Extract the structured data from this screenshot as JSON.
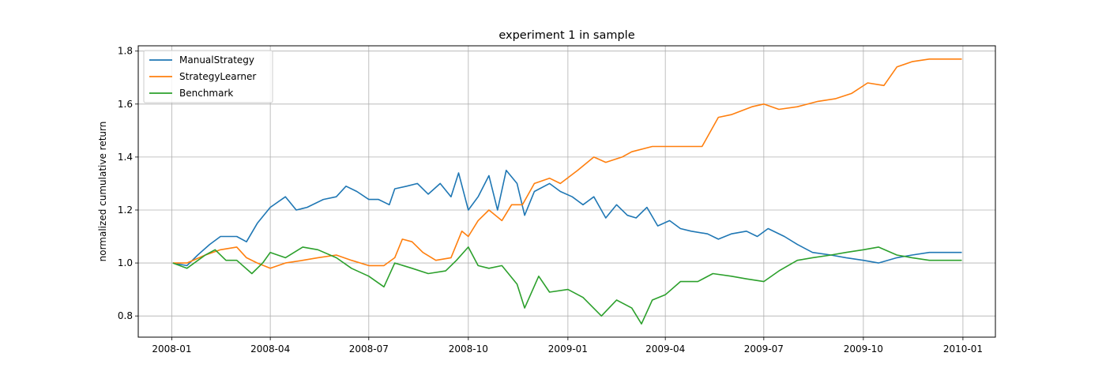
{
  "chart_data": {
    "type": "line",
    "title": "experiment 1 in sample",
    "xlabel": "",
    "ylabel": "normalized cumulative return",
    "x_type": "date",
    "xlim": [
      "2007-12-01",
      "2010-01-31"
    ],
    "ylim": [
      0.72,
      1.82
    ],
    "x_ticks": [
      "2008-01",
      "2008-04",
      "2008-07",
      "2008-10",
      "2009-01",
      "2009-04",
      "2009-07",
      "2009-10",
      "2010-01"
    ],
    "y_ticks": [
      "0.8",
      "1.0",
      "1.2",
      "1.4",
      "1.6",
      "1.8"
    ],
    "grid": true,
    "legend_position": "upper-left",
    "series": [
      {
        "name": "ManualStrategy",
        "color": "#1f77b4",
        "points": [
          [
            "2008-01-02",
            1.0
          ],
          [
            "2008-01-15",
            0.99
          ],
          [
            "2008-01-25",
            1.03
          ],
          [
            "2008-02-05",
            1.07
          ],
          [
            "2008-02-15",
            1.1
          ],
          [
            "2008-03-01",
            1.1
          ],
          [
            "2008-03-10",
            1.08
          ],
          [
            "2008-03-20",
            1.15
          ],
          [
            "2008-04-01",
            1.21
          ],
          [
            "2008-04-15",
            1.25
          ],
          [
            "2008-04-25",
            1.2
          ],
          [
            "2008-05-05",
            1.21
          ],
          [
            "2008-05-20",
            1.24
          ],
          [
            "2008-06-01",
            1.25
          ],
          [
            "2008-06-10",
            1.29
          ],
          [
            "2008-06-20",
            1.27
          ],
          [
            "2008-07-01",
            1.24
          ],
          [
            "2008-07-10",
            1.24
          ],
          [
            "2008-07-20",
            1.22
          ],
          [
            "2008-07-25",
            1.28
          ],
          [
            "2008-08-05",
            1.29
          ],
          [
            "2008-08-15",
            1.3
          ],
          [
            "2008-08-25",
            1.26
          ],
          [
            "2008-09-05",
            1.3
          ],
          [
            "2008-09-15",
            1.25
          ],
          [
            "2008-09-22",
            1.34
          ],
          [
            "2008-10-01",
            1.2
          ],
          [
            "2008-10-10",
            1.25
          ],
          [
            "2008-10-20",
            1.33
          ],
          [
            "2008-10-28",
            1.2
          ],
          [
            "2008-11-05",
            1.35
          ],
          [
            "2008-11-15",
            1.3
          ],
          [
            "2008-11-22",
            1.18
          ],
          [
            "2008-12-01",
            1.27
          ],
          [
            "2008-12-15",
            1.3
          ],
          [
            "2008-12-25",
            1.27
          ],
          [
            "2009-01-05",
            1.25
          ],
          [
            "2009-01-15",
            1.22
          ],
          [
            "2009-01-25",
            1.25
          ],
          [
            "2009-02-05",
            1.17
          ],
          [
            "2009-02-15",
            1.22
          ],
          [
            "2009-02-25",
            1.18
          ],
          [
            "2009-03-05",
            1.17
          ],
          [
            "2009-03-15",
            1.21
          ],
          [
            "2009-03-25",
            1.14
          ],
          [
            "2009-04-05",
            1.16
          ],
          [
            "2009-04-15",
            1.13
          ],
          [
            "2009-04-25",
            1.12
          ],
          [
            "2009-05-10",
            1.11
          ],
          [
            "2009-05-20",
            1.09
          ],
          [
            "2009-06-01",
            1.11
          ],
          [
            "2009-06-15",
            1.12
          ],
          [
            "2009-06-25",
            1.1
          ],
          [
            "2009-07-05",
            1.13
          ],
          [
            "2009-07-20",
            1.1
          ],
          [
            "2009-08-01",
            1.07
          ],
          [
            "2009-08-15",
            1.04
          ],
          [
            "2009-09-01",
            1.03
          ],
          [
            "2009-09-15",
            1.02
          ],
          [
            "2009-10-01",
            1.01
          ],
          [
            "2009-10-15",
            1.0
          ],
          [
            "2009-11-01",
            1.02
          ],
          [
            "2009-11-15",
            1.03
          ],
          [
            "2009-12-01",
            1.04
          ],
          [
            "2009-12-15",
            1.04
          ],
          [
            "2009-12-31",
            1.04
          ]
        ]
      },
      {
        "name": "StrategyLearner",
        "color": "#ff7f0e",
        "points": [
          [
            "2008-01-02",
            1.0
          ],
          [
            "2008-01-15",
            1.0
          ],
          [
            "2008-02-01",
            1.03
          ],
          [
            "2008-02-15",
            1.05
          ],
          [
            "2008-03-01",
            1.06
          ],
          [
            "2008-03-10",
            1.02
          ],
          [
            "2008-03-20",
            1.0
          ],
          [
            "2008-04-01",
            0.98
          ],
          [
            "2008-04-15",
            1.0
          ],
          [
            "2008-05-01",
            1.01
          ],
          [
            "2008-05-15",
            1.02
          ],
          [
            "2008-06-01",
            1.03
          ],
          [
            "2008-06-15",
            1.01
          ],
          [
            "2008-07-01",
            0.99
          ],
          [
            "2008-07-15",
            0.99
          ],
          [
            "2008-07-25",
            1.02
          ],
          [
            "2008-08-01",
            1.09
          ],
          [
            "2008-08-10",
            1.08
          ],
          [
            "2008-08-20",
            1.04
          ],
          [
            "2008-09-01",
            1.01
          ],
          [
            "2008-09-15",
            1.02
          ],
          [
            "2008-09-25",
            1.12
          ],
          [
            "2008-10-01",
            1.1
          ],
          [
            "2008-10-10",
            1.16
          ],
          [
            "2008-10-20",
            1.2
          ],
          [
            "2008-11-01",
            1.16
          ],
          [
            "2008-11-10",
            1.22
          ],
          [
            "2008-11-20",
            1.22
          ],
          [
            "2008-12-01",
            1.3
          ],
          [
            "2008-12-15",
            1.32
          ],
          [
            "2008-12-25",
            1.3
          ],
          [
            "2009-01-10",
            1.35
          ],
          [
            "2009-01-25",
            1.4
          ],
          [
            "2009-02-05",
            1.38
          ],
          [
            "2009-02-20",
            1.4
          ],
          [
            "2009-03-01",
            1.42
          ],
          [
            "2009-03-20",
            1.44
          ],
          [
            "2009-04-15",
            1.44
          ],
          [
            "2009-05-05",
            1.44
          ],
          [
            "2009-05-20",
            1.55
          ],
          [
            "2009-06-01",
            1.56
          ],
          [
            "2009-06-20",
            1.59
          ],
          [
            "2009-07-01",
            1.6
          ],
          [
            "2009-07-15",
            1.58
          ],
          [
            "2009-08-01",
            1.59
          ],
          [
            "2009-08-20",
            1.61
          ],
          [
            "2009-09-05",
            1.62
          ],
          [
            "2009-09-20",
            1.64
          ],
          [
            "2009-10-05",
            1.68
          ],
          [
            "2009-10-20",
            1.67
          ],
          [
            "2009-11-01",
            1.74
          ],
          [
            "2009-11-15",
            1.76
          ],
          [
            "2009-12-01",
            1.77
          ],
          [
            "2009-12-31",
            1.77
          ]
        ]
      },
      {
        "name": "Benchmark",
        "color": "#2ca02c",
        "points": [
          [
            "2008-01-02",
            1.0
          ],
          [
            "2008-01-15",
            0.98
          ],
          [
            "2008-02-01",
            1.03
          ],
          [
            "2008-02-10",
            1.05
          ],
          [
            "2008-02-20",
            1.01
          ],
          [
            "2008-03-01",
            1.01
          ],
          [
            "2008-03-15",
            0.96
          ],
          [
            "2008-03-25",
            1.0
          ],
          [
            "2008-04-01",
            1.04
          ],
          [
            "2008-04-15",
            1.02
          ],
          [
            "2008-05-01",
            1.06
          ],
          [
            "2008-05-15",
            1.05
          ],
          [
            "2008-06-01",
            1.02
          ],
          [
            "2008-06-15",
            0.98
          ],
          [
            "2008-07-01",
            0.95
          ],
          [
            "2008-07-15",
            0.91
          ],
          [
            "2008-07-25",
            1.0
          ],
          [
            "2008-08-10",
            0.98
          ],
          [
            "2008-08-25",
            0.96
          ],
          [
            "2008-09-10",
            0.97
          ],
          [
            "2008-09-20",
            1.01
          ],
          [
            "2008-10-01",
            1.06
          ],
          [
            "2008-10-10",
            0.99
          ],
          [
            "2008-10-20",
            0.98
          ],
          [
            "2008-11-01",
            0.99
          ],
          [
            "2008-11-15",
            0.92
          ],
          [
            "2008-11-22",
            0.83
          ],
          [
            "2008-12-05",
            0.95
          ],
          [
            "2008-12-15",
            0.89
          ],
          [
            "2009-01-01",
            0.9
          ],
          [
            "2009-01-15",
            0.87
          ],
          [
            "2009-02-01",
            0.8
          ],
          [
            "2009-02-15",
            0.86
          ],
          [
            "2009-03-01",
            0.83
          ],
          [
            "2009-03-10",
            0.77
          ],
          [
            "2009-03-20",
            0.86
          ],
          [
            "2009-04-01",
            0.88
          ],
          [
            "2009-04-15",
            0.93
          ],
          [
            "2009-05-01",
            0.93
          ],
          [
            "2009-05-15",
            0.96
          ],
          [
            "2009-06-01",
            0.95
          ],
          [
            "2009-06-15",
            0.94
          ],
          [
            "2009-07-01",
            0.93
          ],
          [
            "2009-07-15",
            0.97
          ],
          [
            "2009-08-01",
            1.01
          ],
          [
            "2009-08-15",
            1.02
          ],
          [
            "2009-09-01",
            1.03
          ],
          [
            "2009-09-15",
            1.04
          ],
          [
            "2009-10-01",
            1.05
          ],
          [
            "2009-10-15",
            1.06
          ],
          [
            "2009-11-01",
            1.03
          ],
          [
            "2009-11-15",
            1.02
          ],
          [
            "2009-12-01",
            1.01
          ],
          [
            "2009-12-31",
            1.01
          ]
        ]
      }
    ]
  }
}
